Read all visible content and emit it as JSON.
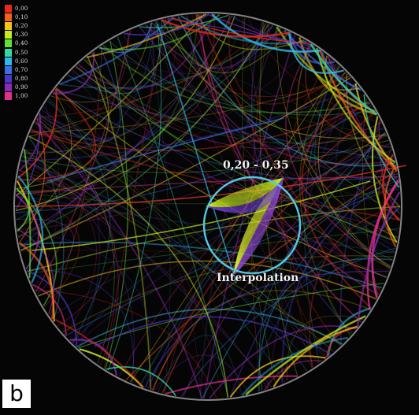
{
  "legend": {
    "items": [
      {
        "label": "0,00",
        "color": "#e82a1e"
      },
      {
        "label": "0,10",
        "color": "#f2601f"
      },
      {
        "label": "0,20",
        "color": "#f5c21b"
      },
      {
        "label": "0,30",
        "color": "#c7ea1e"
      },
      {
        "label": "0,40",
        "color": "#5ee03a"
      },
      {
        "label": "0,50",
        "color": "#33d7a6"
      },
      {
        "label": "0,60",
        "color": "#2fb8e8"
      },
      {
        "label": "0,70",
        "color": "#3a70e2"
      },
      {
        "label": "0,80",
        "color": "#4a38c6"
      },
      {
        "label": "0,90",
        "color": "#8e2ab8"
      },
      {
        "label": "1,00",
        "color": "#e0308a"
      }
    ]
  },
  "annotations": {
    "range_label": "0,20 - 0,35",
    "interp_label": "Interpolation"
  },
  "panel_letter": "b",
  "colors": {
    "background": "#050505",
    "focus_circle": "#53c9e6"
  }
}
